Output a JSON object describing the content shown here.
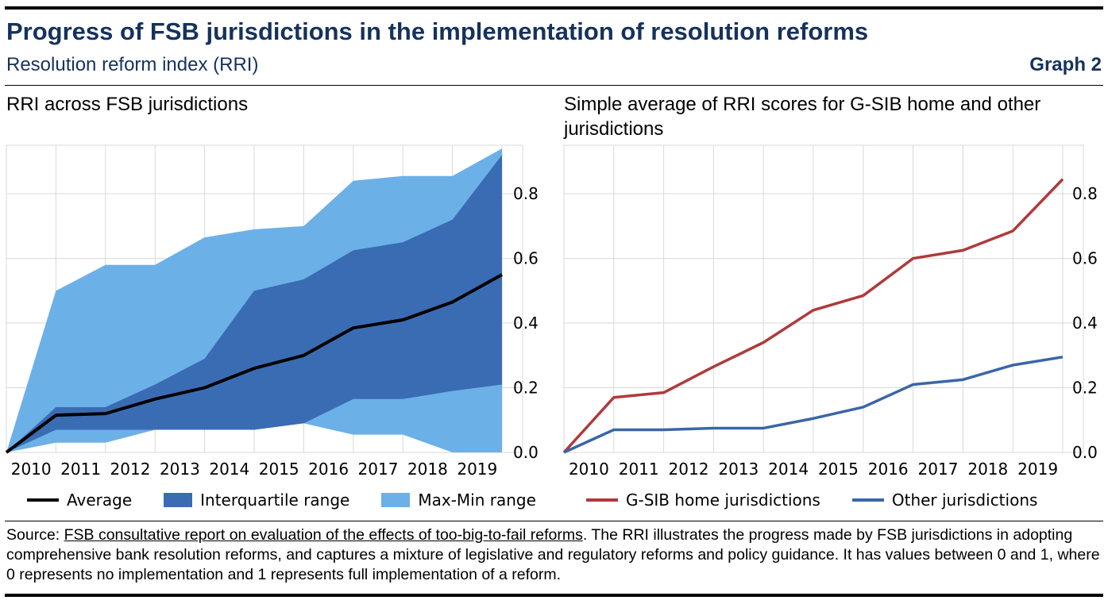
{
  "header": {
    "title": "Progress of FSB jurisdictions in the implementation of resolution reforms",
    "subtitle": "Resolution reform index (RRI)",
    "graph_label": "Graph 2"
  },
  "source": {
    "prefix": "Source: ",
    "link_text": "FSB consultative report on evaluation of the effects of too-big-to-fail reforms",
    "rest": ". The RRI illustrates the progress made by FSB jurisdictions in adopting comprehensive bank resolution reforms, and captures a mixture of legislative and regulatory reforms and policy guidance. It has values between 0 and 1, where 0 represents no implementation and 1 represents full implementation of a reform."
  },
  "colors": {
    "average": "#000000",
    "interquartile": "#3a6cb4",
    "maxmin": "#6cb0e8",
    "gsib": "#b03a3a",
    "other": "#3a66a8",
    "grid": "#d9d9d9"
  },
  "chart_data": [
    {
      "type": "area",
      "title": "RRI across FSB jurisdictions",
      "categories": [
        "2010",
        "2011",
        "2012",
        "2013",
        "2014",
        "2015",
        "2016",
        "2017",
        "2018",
        "2019"
      ],
      "x": [
        2009.5,
        2010.5,
        2011.5,
        2012.5,
        2013.5,
        2014.5,
        2015.5,
        2016.5,
        2017.5,
        2018.5,
        2019.5
      ],
      "ylim": [
        0,
        0.95
      ],
      "yticks": [
        0.0,
        0.2,
        0.4,
        0.6,
        0.8
      ],
      "grid": true,
      "legend_position": "bottom",
      "series": [
        {
          "name": "Max-Min range",
          "kind": "band",
          "low": [
            0,
            0.03,
            0.03,
            0.07,
            0.07,
            0.07,
            0.09,
            0.055,
            0.055,
            0,
            0
          ],
          "high": [
            0,
            0.5,
            0.58,
            0.58,
            0.665,
            0.69,
            0.7,
            0.84,
            0.855,
            0.855,
            0.94
          ]
        },
        {
          "name": "Interquartile range",
          "kind": "band",
          "low": [
            0,
            0.07,
            0.07,
            0.07,
            0.07,
            0.07,
            0.09,
            0.165,
            0.165,
            0.19,
            0.21
          ],
          "high": [
            0,
            0.14,
            0.14,
            0.21,
            0.29,
            0.5,
            0.535,
            0.625,
            0.65,
            0.72,
            0.92
          ]
        },
        {
          "name": "Average",
          "kind": "line",
          "values": [
            0,
            0.115,
            0.12,
            0.165,
            0.2,
            0.26,
            0.3,
            0.385,
            0.41,
            0.465,
            0.55
          ]
        }
      ]
    },
    {
      "type": "line",
      "title": "Simple average of RRI scores for G-SIB home and other jurisdictions",
      "categories": [
        "2010",
        "2011",
        "2012",
        "2013",
        "2014",
        "2015",
        "2016",
        "2017",
        "2018",
        "2019"
      ],
      "x": [
        2009.5,
        2010.5,
        2011.5,
        2012.5,
        2013.5,
        2014.5,
        2015.5,
        2016.5,
        2017.5,
        2018.5,
        2019.5
      ],
      "ylim": [
        0,
        0.95
      ],
      "yticks": [
        0.0,
        0.2,
        0.4,
        0.6,
        0.8
      ],
      "grid": true,
      "legend_position": "bottom",
      "series": [
        {
          "name": "G-SIB home jurisdictions",
          "values": [
            0,
            0.17,
            0.185,
            0.265,
            0.34,
            0.44,
            0.485,
            0.6,
            0.625,
            0.685,
            0.845
          ]
        },
        {
          "name": "Other jurisdictions",
          "values": [
            0,
            0.07,
            0.07,
            0.075,
            0.075,
            0.105,
            0.14,
            0.21,
            0.225,
            0.27,
            0.295
          ]
        }
      ]
    }
  ]
}
